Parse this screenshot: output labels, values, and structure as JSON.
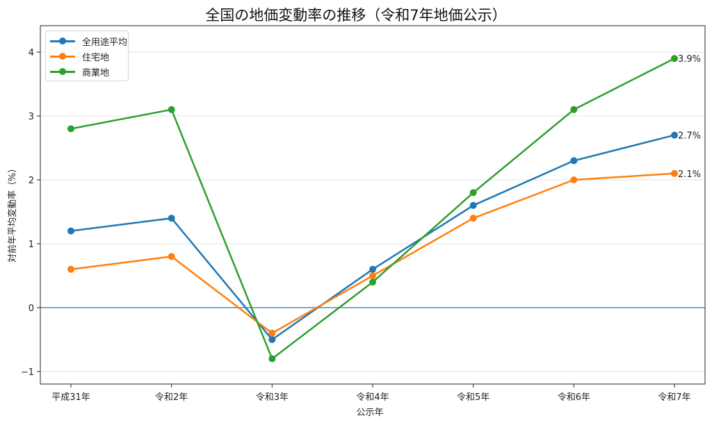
{
  "chart_data": {
    "type": "line",
    "title": "全国の地価変動率の推移（令和7年地価公示）",
    "xlabel": "公示年",
    "ylabel": "対前年平均変動率（%）",
    "categories": [
      "平成31年",
      "令和2年",
      "令和3年",
      "令和4年",
      "令和5年",
      "令和6年",
      "令和7年"
    ],
    "series": [
      {
        "name": "全用途平均",
        "color": "#1f77b4",
        "values": [
          1.2,
          1.4,
          -0.5,
          0.6,
          1.6,
          2.3,
          2.7
        ]
      },
      {
        "name": "住宅地",
        "color": "#ff7f0e",
        "values": [
          0.6,
          0.8,
          -0.4,
          0.5,
          1.4,
          2.0,
          2.1
        ]
      },
      {
        "name": "商業地",
        "color": "#2ca02c",
        "values": [
          2.8,
          3.1,
          -0.8,
          0.4,
          1.8,
          3.1,
          3.9
        ]
      }
    ],
    "yticks": [
      -1,
      0,
      1,
      2,
      3,
      4
    ],
    "ytick_labels": [
      "−1",
      "0",
      "1",
      "2",
      "3",
      "4"
    ],
    "ylim": [
      -1.2,
      4.4
    ],
    "grid": "horizontal",
    "zero_line": {
      "y": 0,
      "color": "#1f77b4"
    },
    "legend_position": "upper left",
    "annotations": [
      {
        "series": "商業地",
        "x": "令和7年",
        "y": 3.9,
        "text": "3.9%"
      },
      {
        "series": "全用途平均",
        "x": "令和7年",
        "y": 2.7,
        "text": "2.7%"
      },
      {
        "series": "住宅地",
        "x": "令和7年",
        "y": 2.1,
        "text": "2.1%"
      }
    ]
  }
}
